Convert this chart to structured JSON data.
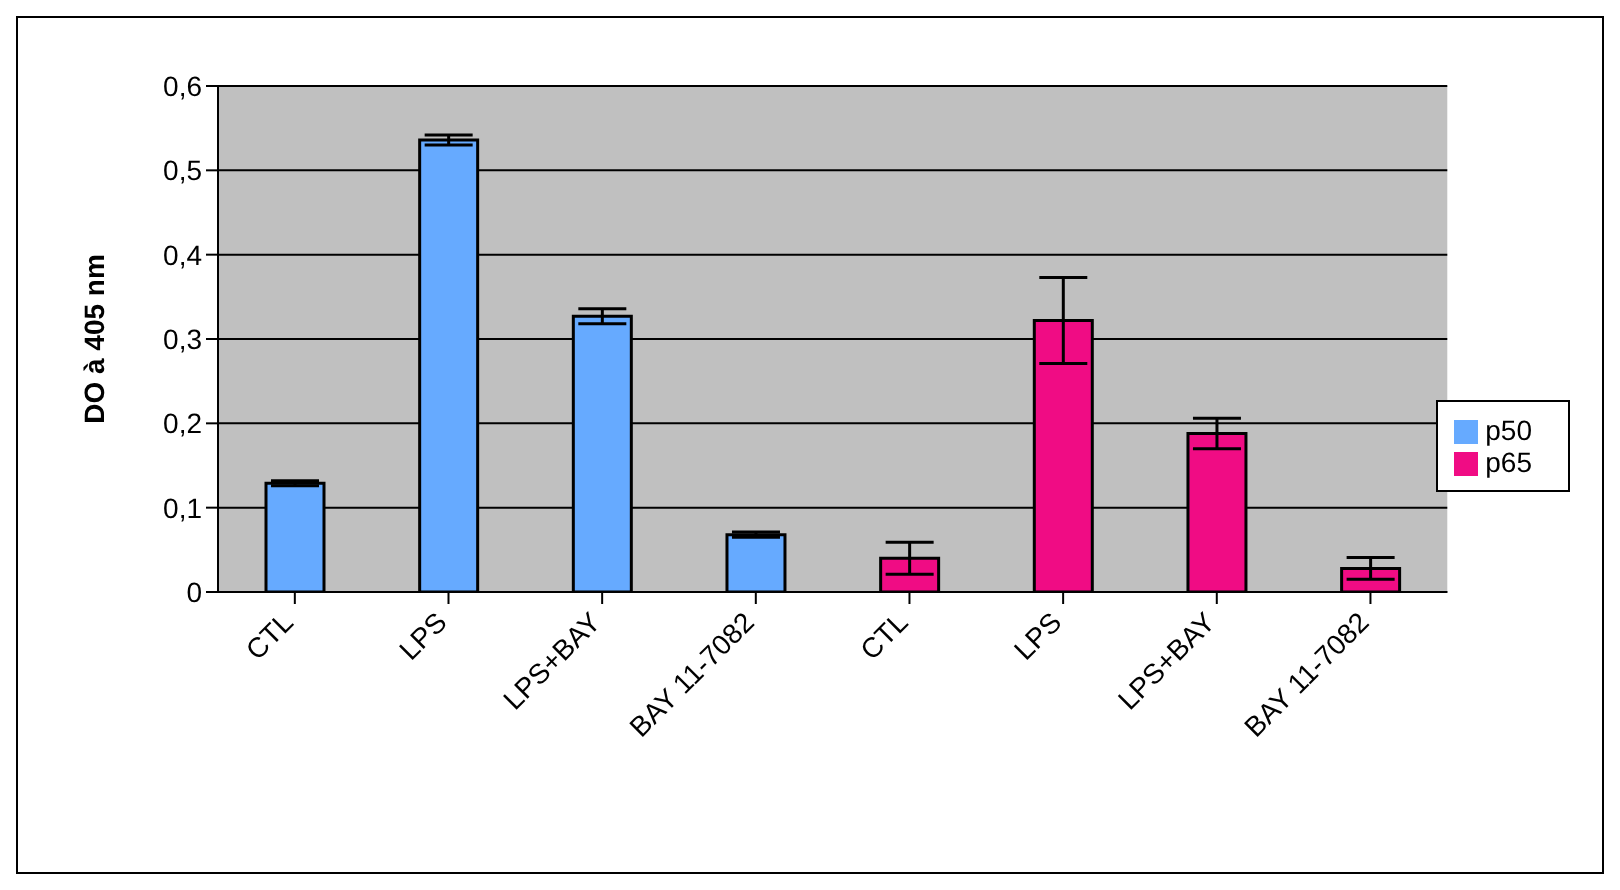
{
  "chart_data": {
    "type": "bar",
    "ylabel": "DO à 405 nm",
    "categories": [
      "CTL",
      "LPS",
      "LPS+BAY",
      "BAY 11-7082",
      "CTL",
      "LPS",
      "LPS+BAY",
      "BAY 11-7082"
    ],
    "series": [
      {
        "name": "p50",
        "color": "#66aaff",
        "values": [
          0.129,
          0.536,
          0.327,
          0.068,
          null,
          null,
          null,
          null
        ],
        "errors": [
          0.003,
          0.006,
          0.009,
          0.003,
          null,
          null,
          null,
          null
        ]
      },
      {
        "name": "p65",
        "color": "#f00c84",
        "values": [
          null,
          null,
          null,
          null,
          0.04,
          0.322,
          0.188,
          0.028
        ],
        "errors": [
          null,
          null,
          null,
          null,
          0.019,
          0.051,
          0.018,
          0.013
        ]
      }
    ],
    "ylim": [
      0,
      0.6
    ],
    "yticks": [
      {
        "value": 0,
        "label": "0"
      },
      {
        "value": 0.1,
        "label": "0,1"
      },
      {
        "value": 0.2,
        "label": "0,2"
      },
      {
        "value": 0.3,
        "label": "0,3"
      },
      {
        "value": 0.4,
        "label": "0,4"
      },
      {
        "value": 0.5,
        "label": "0,5"
      },
      {
        "value": 0.6,
        "label": "0,6"
      }
    ],
    "grid": "y",
    "legend": "right"
  }
}
